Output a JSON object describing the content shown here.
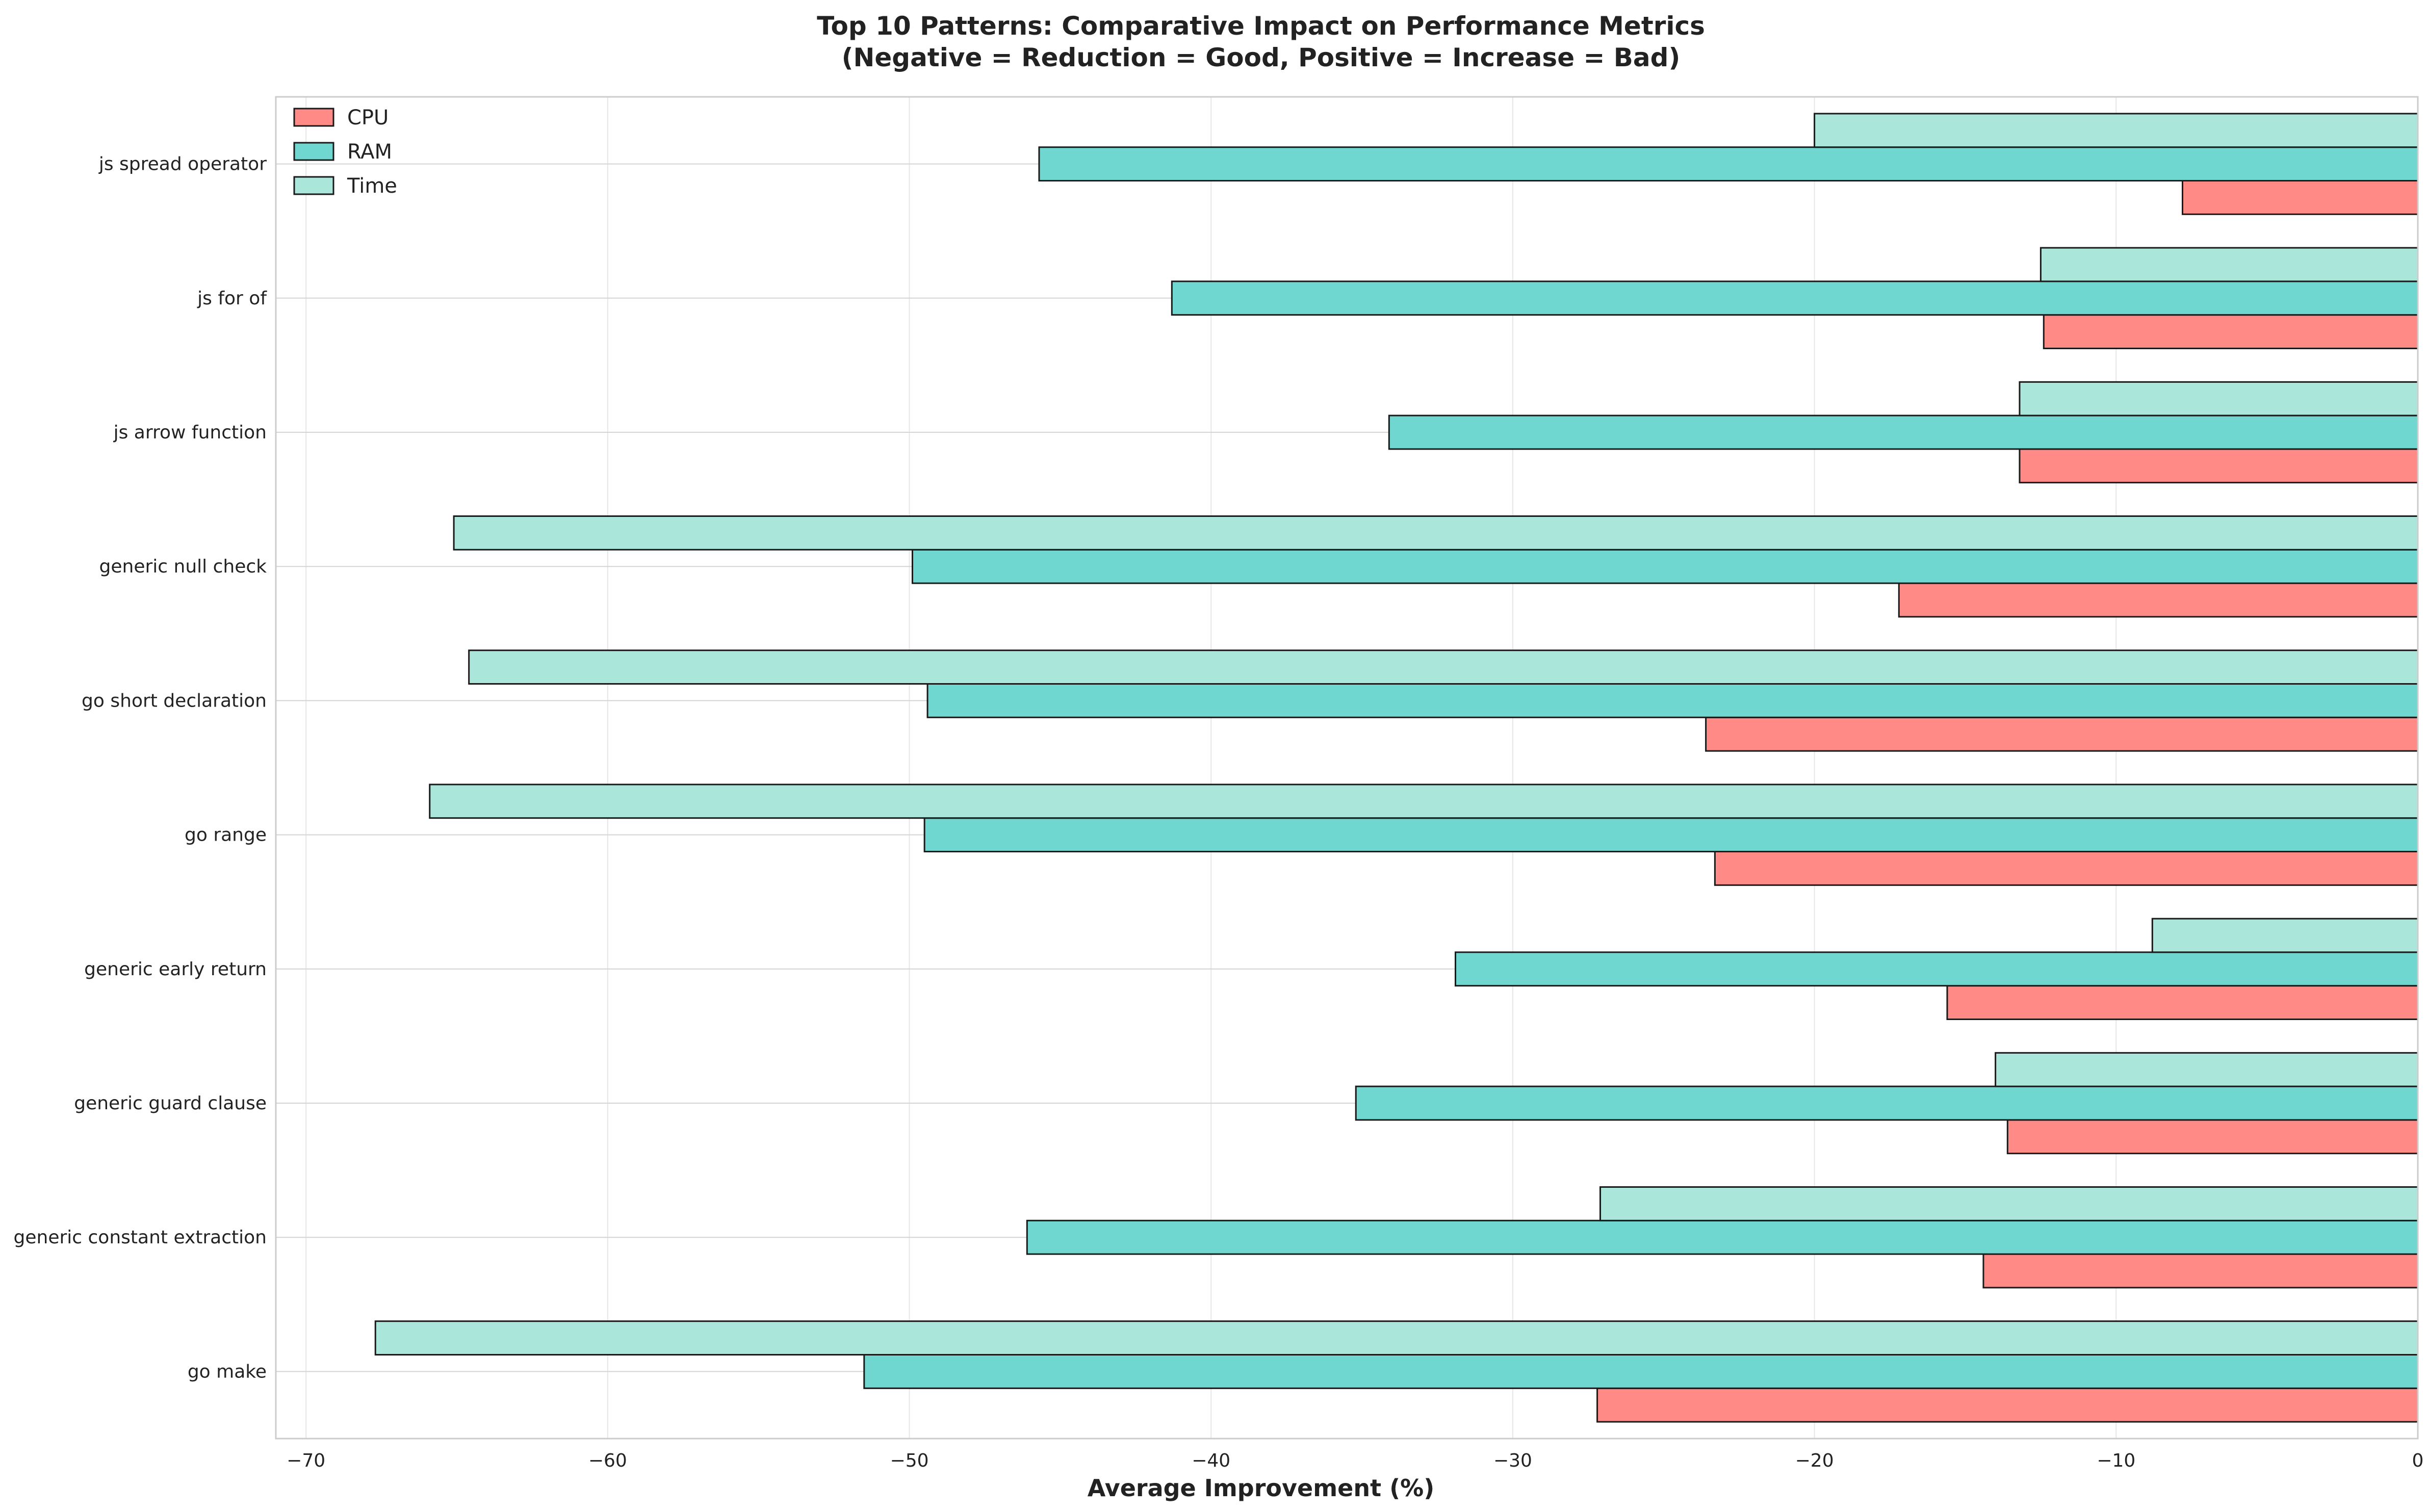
{
  "chart_data": {
    "type": "bar",
    "orientation": "horizontal",
    "title_line1": "Top 10 Patterns: Comparative Impact on Performance Metrics",
    "title_line2": "(Negative = Reduction = Good, Positive = Increase = Bad)",
    "xlabel": "Average Improvement (%)",
    "ylabel": "",
    "xlim": [
      -71,
      0
    ],
    "xticks": [
      -70,
      -60,
      -50,
      -40,
      -30,
      -20,
      -10,
      0
    ],
    "grid": true,
    "legend_position": "top-left",
    "categories": [
      "js spread operator",
      "js for of",
      "js arrow function",
      "generic null check",
      "go short declaration",
      "go range",
      "generic early return",
      "generic guard clause",
      "generic constant extraction",
      "go make"
    ],
    "series": [
      {
        "name": "CPU",
        "color": "#ff8a86",
        "values": [
          -7.8,
          -12.4,
          -13.2,
          -17.2,
          -23.6,
          -23.3,
          -15.6,
          -13.6,
          -14.4,
          -27.2
        ]
      },
      {
        "name": "RAM",
        "color": "#6fd7cf",
        "values": [
          -45.7,
          -41.3,
          -34.1,
          -49.9,
          -49.4,
          -49.5,
          -31.9,
          -35.2,
          -46.1,
          -51.5
        ]
      },
      {
        "name": "Time",
        "color": "#abe6da",
        "values": [
          -20.0,
          -12.5,
          -13.2,
          -65.1,
          -64.6,
          -65.9,
          -8.8,
          -14.0,
          -27.1,
          -67.7
        ]
      }
    ]
  }
}
